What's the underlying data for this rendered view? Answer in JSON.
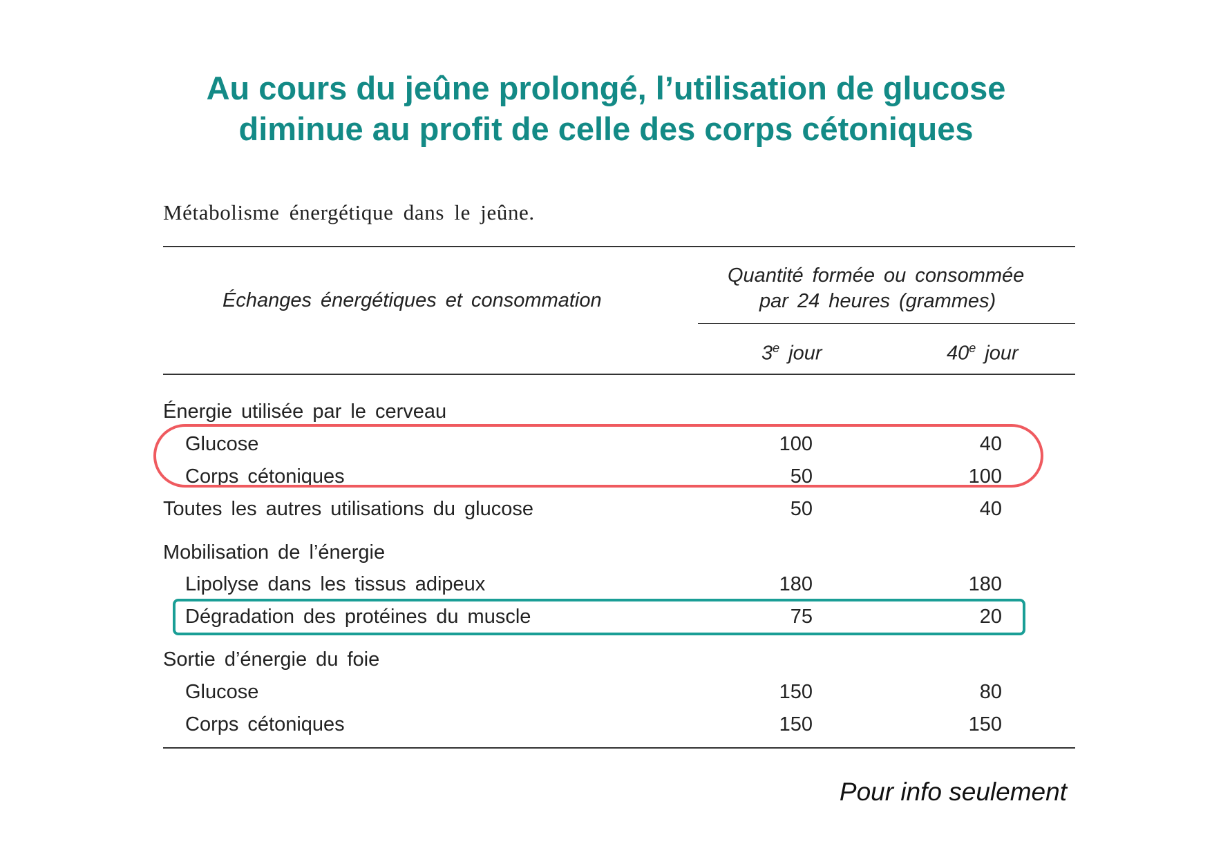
{
  "title": {
    "line1": "Au cours du jeûne prolongé, l’utilisation de glucose",
    "line2": "diminue au profit de celle des corps cétoniques"
  },
  "table": {
    "caption": "Métabolisme énergétique dans le jeûne.",
    "header": {
      "col1": "Échanges énergétiques et consommation",
      "quantity_line1": "Quantité formée ou consommée",
      "quantity_line2": "par 24 heures (grammes)",
      "day3_num": "3",
      "day3_sup": "e",
      "day3_word": "jour",
      "day40_num": "40",
      "day40_sup": "e",
      "day40_word": "jour"
    },
    "rows": [
      {
        "label": "Énergie utilisée par le cerveau",
        "day3": "",
        "day40": ""
      },
      {
        "label": "Glucose",
        "day3": "100",
        "day40": "40"
      },
      {
        "label": "Corps cétoniques",
        "day3": "50",
        "day40": "100"
      },
      {
        "label": "Toutes les autres utilisations du glucose",
        "day3": "50",
        "day40": "40"
      },
      {
        "label": "Mobilisation de l’énergie",
        "day3": "",
        "day40": ""
      },
      {
        "label": "Lipolyse dans les tissus adipeux",
        "day3": "180",
        "day40": "180"
      },
      {
        "label": "Dégradation des protéines du muscle",
        "day3": "75",
        "day40": "20"
      },
      {
        "label": "Sortie d’énergie du foie",
        "day3": "",
        "day40": ""
      },
      {
        "label": "Glucose",
        "day3": "150",
        "day40": "80"
      },
      {
        "label": "Corps cétoniques",
        "day3": "150",
        "day40": "150"
      }
    ]
  },
  "highlight_colors": {
    "red": "#ef5a5f",
    "teal": "#1a9e96"
  },
  "title_color": "#138a86",
  "footnote": "Pour info seulement"
}
